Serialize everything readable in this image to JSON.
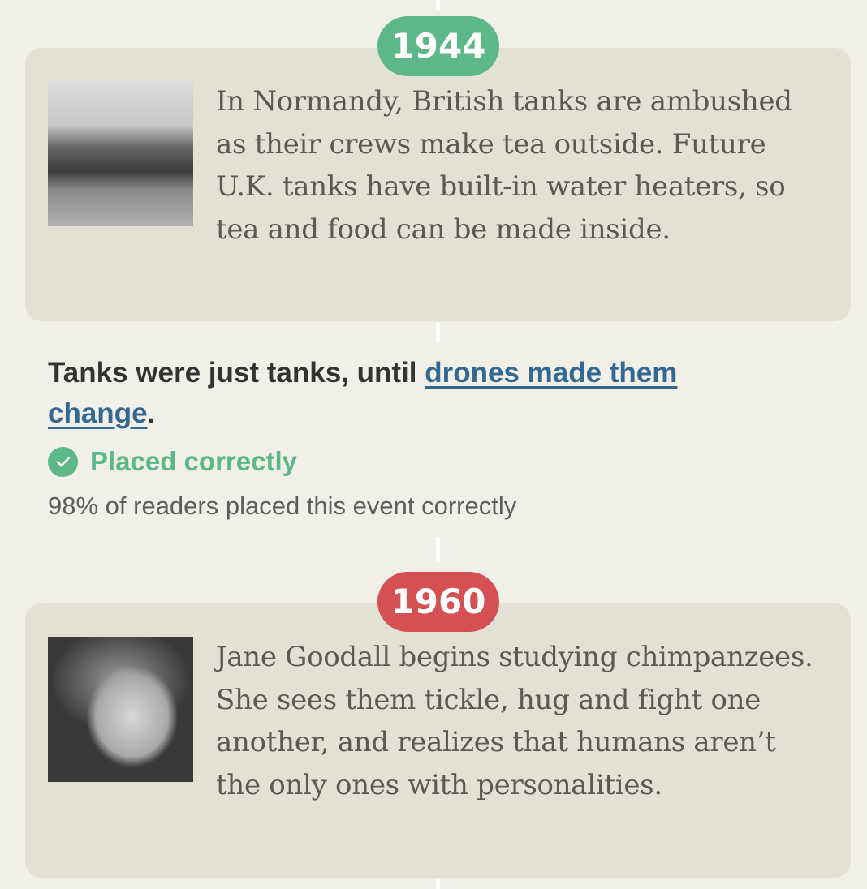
{
  "events": [
    {
      "year": "1944",
      "result": "correct",
      "badge_color": "#5cb887",
      "image": "tank-photo",
      "text": "In Normandy, British tanks are ambushed as their crews make tea outside. Future U.K. tanks have built-in water heaters, so tea and food can be made inside."
    },
    {
      "year": "1960",
      "result": "incorrect",
      "badge_color": "#d45053",
      "image": "jane-goodall-photo",
      "text": "Jane Goodall begins studying chimpanzees. She sees them tickle, hug and fight one another, and realizes that humans aren’t the only ones with personalities."
    }
  ],
  "placed_event": {
    "prefix": "Tanks were just tanks, until ",
    "link_text": "drones made them change",
    "suffix": ".",
    "status_label": "Placed correctly",
    "status_icon": "check-circle-icon",
    "stat": "98% of readers placed this event correctly"
  },
  "colors": {
    "background": "#f1f0e8",
    "card": "#e3e1d6",
    "correct": "#5cb887",
    "incorrect": "#d45053",
    "link": "#326891"
  }
}
